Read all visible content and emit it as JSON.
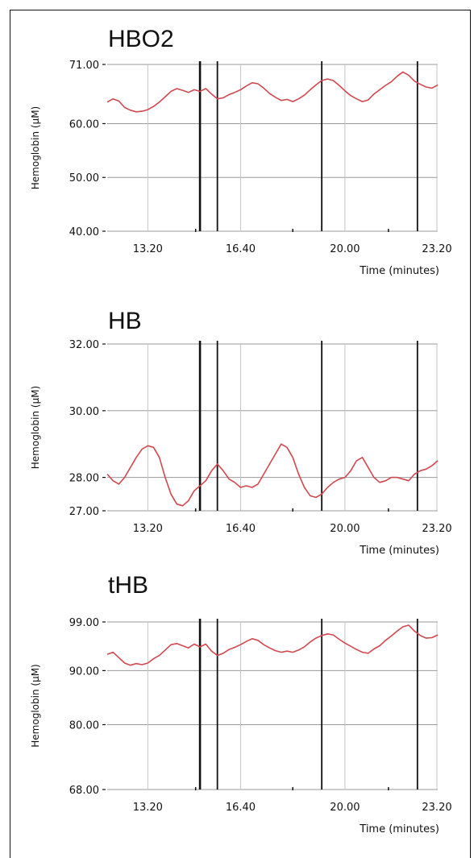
{
  "colors": {
    "series": "#d1484f",
    "grid": "#9a9a9a",
    "event": "#111111",
    "axis": "#111111"
  },
  "chart_data": [
    {
      "type": "line",
      "title": "HBO2",
      "xlabel": "Time (minutes)",
      "ylabel": "Hemoglobin (µM)",
      "xlim": [
        11.8,
        23.2
      ],
      "ylim": [
        40,
        71
      ],
      "xticks": [
        "13.20",
        "16.40",
        "20.00",
        "23.20"
      ],
      "yticks": [
        "40.00",
        "50.00",
        "60.00",
        "71.00"
      ],
      "event_lines": [
        15.0,
        15.6,
        19.2,
        22.5
      ],
      "grid": true,
      "series": [
        {
          "x": [
            11.8,
            12.0,
            12.2,
            12.4,
            12.6,
            12.8,
            13.0,
            13.2,
            13.4,
            13.6,
            13.8,
            14.0,
            14.2,
            14.4,
            14.6,
            14.8,
            15.0,
            15.2,
            15.4,
            15.6,
            15.8,
            16.0,
            16.2,
            16.4,
            16.6,
            16.8,
            17.0,
            17.2,
            17.4,
            17.6,
            17.8,
            18.0,
            18.2,
            18.4,
            18.6,
            18.8,
            19.0,
            19.2,
            19.4,
            19.6,
            19.8,
            20.0,
            20.2,
            20.4,
            20.6,
            20.8,
            21.0,
            21.2,
            21.4,
            21.6,
            21.8,
            22.0,
            22.2,
            22.4,
            22.6,
            22.8,
            23.0,
            23.2
          ],
          "y": [
            64.0,
            64.6,
            64.2,
            63.0,
            62.5,
            62.2,
            62.3,
            62.6,
            63.2,
            64.0,
            65.0,
            66.0,
            66.5,
            66.2,
            65.8,
            66.3,
            66.0,
            66.5,
            65.5,
            64.6,
            64.8,
            65.4,
            65.8,
            66.3,
            67.0,
            67.6,
            67.4,
            66.6,
            65.6,
            64.9,
            64.3,
            64.5,
            64.1,
            64.6,
            65.3,
            66.3,
            67.2,
            68.0,
            68.3,
            68.0,
            67.1,
            66.1,
            65.2,
            64.6,
            64.1,
            64.4,
            65.5,
            66.3,
            67.1,
            67.8,
            68.8,
            69.6,
            69.0,
            67.9,
            67.3,
            66.8,
            66.6,
            67.2
          ]
        }
      ]
    },
    {
      "type": "line",
      "title": "HB",
      "xlabel": "Time (minutes)",
      "ylabel": "Hemoglobin (µM)",
      "xlim": [
        11.8,
        23.2
      ],
      "ylim": [
        27,
        32
      ],
      "xticks": [
        "13.20",
        "16.40",
        "20.00",
        "23.20"
      ],
      "yticks": [
        "27.00",
        "28.00",
        "30.00",
        "32.00"
      ],
      "event_lines": [
        15.0,
        15.6,
        19.2,
        22.5
      ],
      "grid": true,
      "series": [
        {
          "x": [
            11.8,
            12.0,
            12.2,
            12.4,
            12.6,
            12.8,
            13.0,
            13.2,
            13.4,
            13.6,
            13.8,
            14.0,
            14.2,
            14.4,
            14.6,
            14.8,
            15.0,
            15.2,
            15.4,
            15.6,
            15.8,
            16.0,
            16.2,
            16.4,
            16.6,
            16.8,
            17.0,
            17.2,
            17.4,
            17.6,
            17.8,
            18.0,
            18.2,
            18.4,
            18.6,
            18.8,
            19.0,
            19.2,
            19.4,
            19.6,
            19.8,
            20.0,
            20.2,
            20.4,
            20.6,
            20.8,
            21.0,
            21.2,
            21.4,
            21.6,
            21.8,
            22.0,
            22.2,
            22.4,
            22.6,
            22.8,
            23.0,
            23.2
          ],
          "y": [
            28.1,
            27.9,
            27.8,
            28.0,
            28.3,
            28.6,
            28.85,
            28.95,
            28.9,
            28.6,
            28.0,
            27.5,
            27.2,
            27.15,
            27.3,
            27.6,
            27.75,
            27.9,
            28.2,
            28.4,
            28.2,
            27.95,
            27.85,
            27.7,
            27.75,
            27.7,
            27.8,
            28.1,
            28.4,
            28.7,
            29.0,
            28.9,
            28.6,
            28.1,
            27.7,
            27.45,
            27.4,
            27.5,
            27.7,
            27.85,
            27.95,
            28.0,
            28.2,
            28.5,
            28.6,
            28.3,
            28.0,
            27.85,
            27.9,
            28.0,
            28.0,
            27.95,
            27.9,
            28.1,
            28.2,
            28.25,
            28.35,
            28.5
          ]
        }
      ]
    },
    {
      "type": "line",
      "title": "tHB",
      "xlabel": "Time (minutes)",
      "ylabel": "Hemoglobin (µM)",
      "xlim": [
        11.8,
        23.2
      ],
      "ylim": [
        68,
        99
      ],
      "xticks": [
        "13.20",
        "16.40",
        "20.00",
        "23.20"
      ],
      "yticks": [
        "68.00",
        "80.00",
        "90.00",
        "99.00"
      ],
      "event_lines": [
        15.0,
        15.6,
        19.2,
        22.5
      ],
      "grid": true,
      "series": [
        {
          "x": [
            11.8,
            12.0,
            12.2,
            12.4,
            12.6,
            12.8,
            13.0,
            13.2,
            13.4,
            13.6,
            13.8,
            14.0,
            14.2,
            14.4,
            14.6,
            14.8,
            15.0,
            15.2,
            15.4,
            15.6,
            15.8,
            16.0,
            16.2,
            16.4,
            16.6,
            16.8,
            17.0,
            17.2,
            17.4,
            17.6,
            17.8,
            18.0,
            18.2,
            18.4,
            18.6,
            18.8,
            19.0,
            19.2,
            19.4,
            19.6,
            19.8,
            20.0,
            20.2,
            20.4,
            20.6,
            20.8,
            21.0,
            21.2,
            21.4,
            21.6,
            21.8,
            22.0,
            22.2,
            22.4,
            22.6,
            22.8,
            23.0,
            23.2
          ],
          "y": [
            93.0,
            93.4,
            92.4,
            91.4,
            91.0,
            91.3,
            91.1,
            91.4,
            92.2,
            92.8,
            93.8,
            94.8,
            95.0,
            94.6,
            94.2,
            94.9,
            94.4,
            94.9,
            93.6,
            92.8,
            93.2,
            93.9,
            94.3,
            94.8,
            95.4,
            95.9,
            95.6,
            94.8,
            94.2,
            93.7,
            93.4,
            93.6,
            93.4,
            93.8,
            94.4,
            95.3,
            96.0,
            96.5,
            96.8,
            96.6,
            95.8,
            95.1,
            94.5,
            93.9,
            93.4,
            93.2,
            94.0,
            94.6,
            95.6,
            96.4,
            97.3,
            98.1,
            98.4,
            97.3,
            96.5,
            96.0,
            96.1,
            96.6
          ]
        }
      ]
    }
  ]
}
